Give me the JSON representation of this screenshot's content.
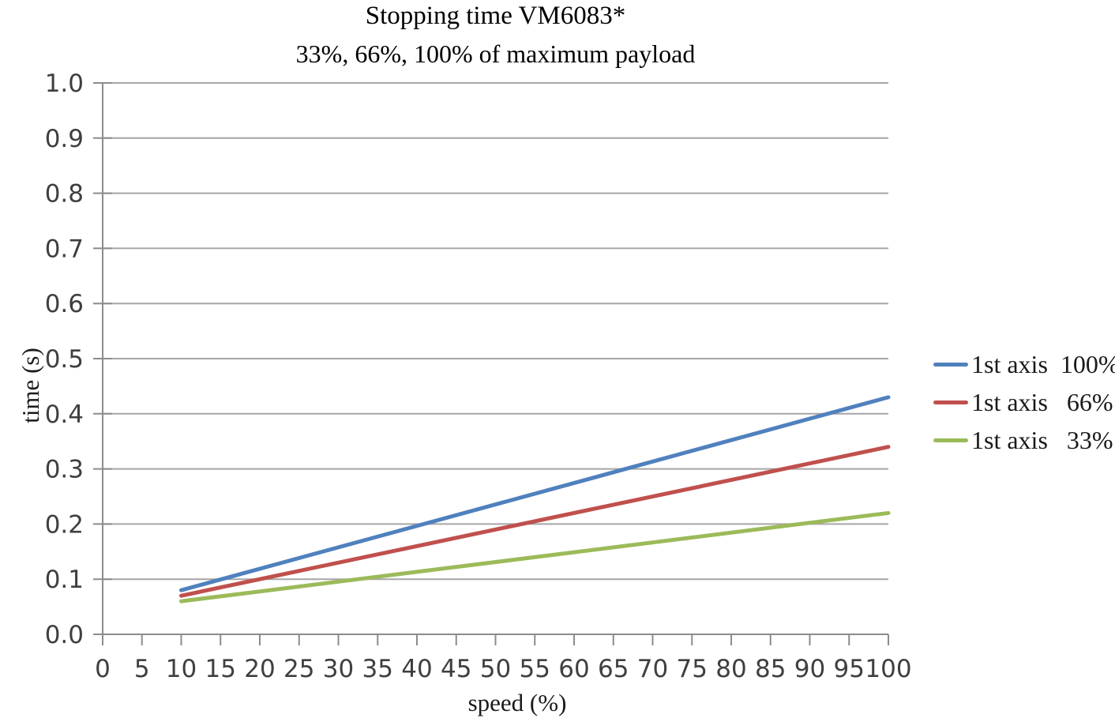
{
  "title": "Stopping time VM6083*",
  "subtitle": "33%, 66%, 100% of maximum payload",
  "x_axis_title": "speed (%)",
  "y_axis_title": "time (s)",
  "legend": {
    "items": [
      {
        "label": "1st axis  100%",
        "color": "#4F81BD"
      },
      {
        "label": "1st axis   66%",
        "color": "#C0504D"
      },
      {
        "label": "1st axis   33%",
        "color": "#9BBB59"
      }
    ]
  },
  "colors": {
    "gridline": "#A6A6A6",
    "axis": "#8C8C8C",
    "tick_label": "#3F3F3F",
    "series_blue": "#4F81BD",
    "series_red": "#C0504D",
    "series_green": "#9BBB59"
  },
  "chart_data": {
    "type": "line",
    "title": "Stopping time VM6083*",
    "subtitle": "33%, 66%, 100% of maximum payload",
    "xlabel": "speed (%)",
    "ylabel": "time (s)",
    "xlim": [
      0,
      100
    ],
    "ylim": [
      0.0,
      1.0
    ],
    "grid": "horizontal",
    "legend_position": "right",
    "x_tick_values": [
      0,
      5,
      10,
      15,
      20,
      25,
      30,
      35,
      40,
      45,
      50,
      55,
      60,
      65,
      70,
      75,
      80,
      85,
      90,
      95,
      100
    ],
    "x_tick_labels": [
      "0",
      "5",
      "10",
      "15",
      "20",
      "25",
      "30",
      "35",
      "40",
      "45",
      "50",
      "55",
      "60",
      "65",
      "70",
      "75",
      "80",
      "85",
      "90",
      "95",
      "100"
    ],
    "y_tick_values": [
      0,
      0.1,
      0.2,
      0.3,
      0.4,
      0.5,
      0.6,
      0.7,
      0.8,
      0.9,
      1.0
    ],
    "y_tick_labels": [
      "0.0",
      "0.1",
      "0.2",
      "0.3",
      "0.4",
      "0.5",
      "0.6",
      "0.7",
      "0.8",
      "0.9",
      "1.0"
    ],
    "series": [
      {
        "name": "1st axis 100%",
        "color": "#4F81BD",
        "points": [
          [
            10,
            0.08
          ],
          [
            100,
            0.43
          ]
        ]
      },
      {
        "name": "1st axis 66%",
        "color": "#C0504D",
        "points": [
          [
            10,
            0.07
          ],
          [
            100,
            0.34
          ]
        ]
      },
      {
        "name": "1st axis 33%",
        "color": "#9BBB59",
        "points": [
          [
            10,
            0.06
          ],
          [
            100,
            0.22
          ]
        ]
      }
    ]
  }
}
